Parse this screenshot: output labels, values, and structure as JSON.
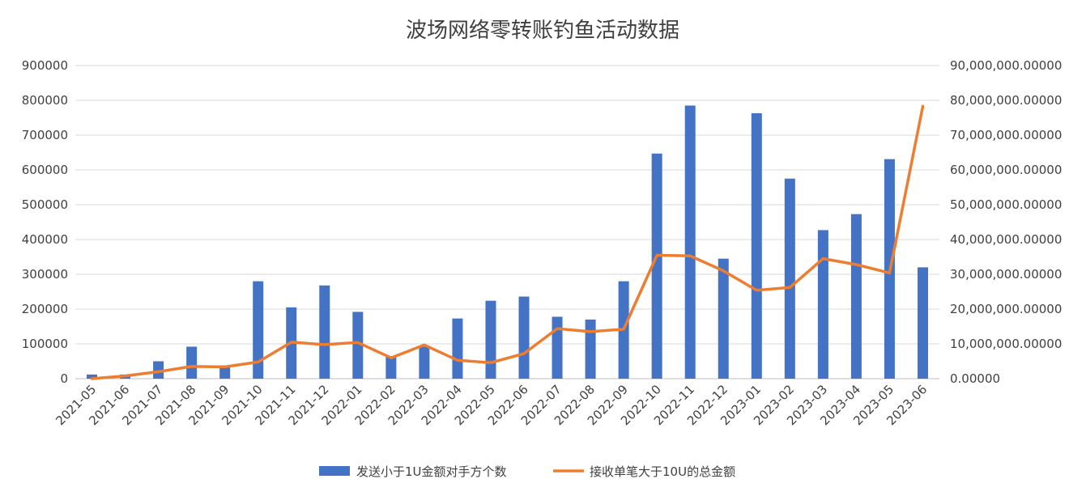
{
  "chart_data": {
    "type": "bar",
    "title": "波场网络零转账钓鱼活动数据",
    "categories": [
      "2021-05",
      "2021-06",
      "2021-07",
      "2021-08",
      "2021-09",
      "2021-10",
      "2021-11",
      "2021-12",
      "2022-01",
      "2022-02",
      "2022-03",
      "2022-04",
      "2022-05",
      "2022-06",
      "2022-07",
      "2022-08",
      "2022-09",
      "2022-10",
      "2022-11",
      "2022-12",
      "2023-01",
      "2023-02",
      "2023-03",
      "2023-04",
      "2023-05",
      "2023-06"
    ],
    "y_left": {
      "ylim": [
        0,
        900000
      ],
      "ticks": [
        0,
        100000,
        200000,
        300000,
        400000,
        500000,
        600000,
        700000,
        800000,
        900000
      ],
      "tick_labels": [
        "0",
        "100000",
        "200000",
        "300000",
        "400000",
        "500000",
        "600000",
        "700000",
        "800000",
        "900000"
      ]
    },
    "y_right": {
      "ylim": [
        0,
        90000000
      ],
      "ticks": [
        0,
        10000000,
        20000000,
        30000000,
        40000000,
        50000000,
        60000000,
        70000000,
        80000000,
        90000000
      ],
      "tick_labels": [
        "0.00000",
        "10,000,000.00000",
        "20,000,000.00000",
        "30,000,000.00000",
        "40,000,000.00000",
        "50,000,000.00000",
        "60,000,000.00000",
        "70,000,000.00000",
        "80,000,000.00000",
        "90,000,000.00000"
      ]
    },
    "series": [
      {
        "name": "发送小于1U金额对手方个数",
        "type": "bar",
        "axis": "left",
        "color": "#4472C4",
        "values": [
          12000,
          12000,
          50000,
          92000,
          38000,
          280000,
          205000,
          268000,
          192000,
          65000,
          92000,
          173000,
          224000,
          236000,
          178000,
          170000,
          280000,
          647000,
          785000,
          345000,
          763000,
          575000,
          427000,
          473000,
          631000,
          320000
        ]
      },
      {
        "name": "接收单笔大于10U的总金额",
        "type": "line",
        "axis": "right",
        "color": "#ED7D31",
        "values": [
          0,
          800000,
          2000000,
          3500000,
          3400000,
          4800000,
          10500000,
          9800000,
          10400000,
          6000000,
          9700000,
          5300000,
          4600000,
          7200000,
          14400000,
          13500000,
          14200000,
          35500000,
          35300000,
          31000000,
          25400000,
          26200000,
          34500000,
          32800000,
          30400000,
          78300000
        ]
      }
    ],
    "grid": true,
    "legend_position": "bottom"
  }
}
